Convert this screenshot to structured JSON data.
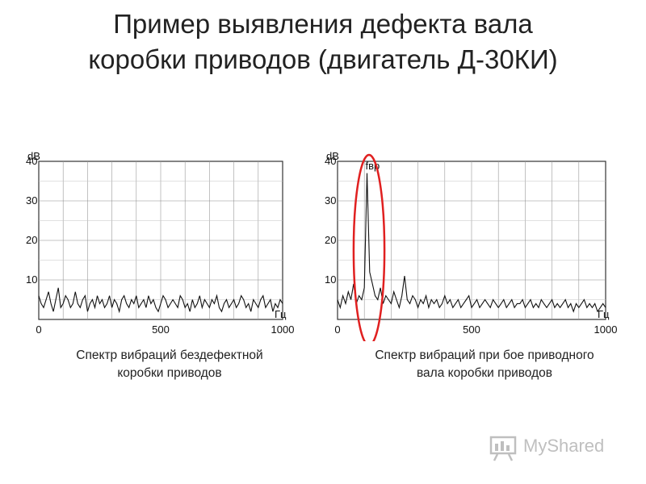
{
  "title": {
    "line1": "Пример выявления дефекта вала",
    "line2": "коробки приводов (двигатель Д-30КИ)"
  },
  "chart_data": [
    {
      "type": "line",
      "title": "",
      "ylabel": "dB",
      "xlabel": "Гц",
      "ylim": [
        0,
        40
      ],
      "xlim": [
        0,
        1000
      ],
      "yticks": [
        "10",
        "20",
        "30",
        "40"
      ],
      "xticks": [
        "0",
        "500",
        "1000"
      ],
      "grid": true,
      "series": [
        {
          "values": [
            6,
            4,
            3,
            5,
            7,
            4,
            2,
            5,
            8,
            3,
            4,
            6,
            5,
            3,
            4,
            7,
            4,
            3,
            5,
            6,
            2,
            4,
            5,
            3,
            6,
            4,
            5,
            3,
            4,
            6,
            3,
            5,
            4,
            2,
            5,
            6,
            4,
            3,
            5,
            4,
            6,
            3,
            4,
            5,
            3,
            6,
            4,
            5,
            3,
            2,
            4,
            6,
            5,
            3,
            4,
            5,
            4,
            3,
            6,
            5,
            3,
            4,
            2,
            5,
            3,
            4,
            6,
            3,
            5,
            4,
            3,
            5,
            4,
            6,
            3,
            2,
            4,
            5,
            3,
            4,
            5,
            3,
            4,
            6,
            5,
            3,
            4,
            2,
            5,
            4,
            3,
            5,
            6,
            3,
            4,
            5,
            2,
            4,
            3,
            5,
            4
          ]
        }
      ],
      "caption": {
        "line1": "Спектр вибраций бездефектной",
        "line2": "коробки приводов"
      }
    },
    {
      "type": "line",
      "title": "",
      "ylabel": "dB",
      "xlabel": "Гц",
      "ylim": [
        0,
        40
      ],
      "xlim": [
        0,
        1000
      ],
      "yticks": [
        "10",
        "20",
        "30",
        "40"
      ],
      "xticks": [
        "0",
        "500",
        "1000"
      ],
      "grid": true,
      "annotation": "fвр",
      "annotation_x": 110,
      "highlight_range_x": [
        60,
        175
      ],
      "series": [
        {
          "values": [
            5,
            3,
            6,
            4,
            7,
            5,
            9,
            4,
            6,
            5,
            8,
            37,
            12,
            9,
            6,
            5,
            8,
            4,
            6,
            5,
            4,
            7,
            5,
            3,
            6,
            11,
            5,
            4,
            6,
            5,
            3,
            5,
            4,
            6,
            3,
            5,
            4,
            5,
            3,
            4,
            6,
            4,
            5,
            3,
            4,
            5,
            3,
            4,
            5,
            6,
            3,
            4,
            5,
            3,
            4,
            5,
            4,
            3,
            5,
            4,
            3,
            4,
            5,
            3,
            4,
            5,
            3,
            4,
            4,
            5,
            3,
            4,
            5,
            3,
            4,
            3,
            5,
            4,
            3,
            4,
            5,
            3,
            4,
            3,
            4,
            5,
            3,
            4,
            2,
            4,
            3,
            4,
            5,
            3,
            4,
            3,
            4,
            2,
            3,
            4,
            3
          ]
        }
      ],
      "caption": {
        "line1": "Спектр вибраций при бое приводного",
        "line2": "вала коробки приводов"
      }
    }
  ],
  "watermark": {
    "text": "MyShared"
  }
}
